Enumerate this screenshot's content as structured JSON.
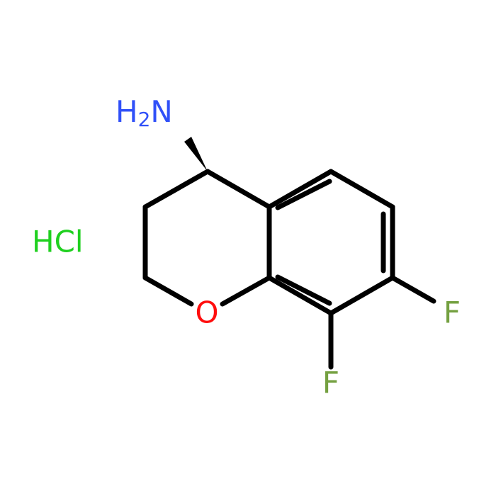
{
  "atoms": {
    "amine": {
      "hydrogen": "H",
      "count": "2",
      "nitrogen": "N"
    },
    "oxygen": "O",
    "fluorine_7": "F",
    "fluorine_8": "F"
  },
  "salt": "HCl"
}
